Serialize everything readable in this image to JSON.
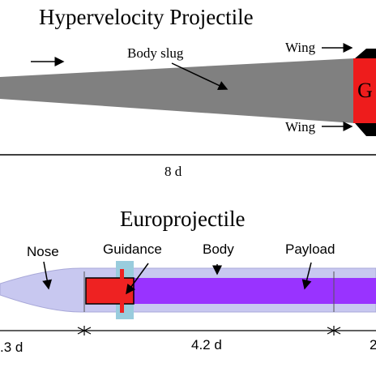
{
  "top": {
    "title": "Hypervelocity Projectile",
    "labels": {
      "body_slug": "Body slug",
      "wing_top": "Wing",
      "wing_bottom": "Wing",
      "guidance_short": "G"
    },
    "dimension": "8 d",
    "colors": {
      "body": "#808080",
      "guidance": "#ee1c1c",
      "wing": "#000000"
    }
  },
  "bottom": {
    "title": "Europrojectile",
    "labels": {
      "nose": "Nose",
      "guidance": "Guidance",
      "body": "Body",
      "payload": "Payload"
    },
    "dimensions": {
      "left": ".3 d",
      "middle": "4.2 d",
      "right": "2"
    },
    "colors": {
      "outer": "#c8c8f0",
      "body": "#9933ff",
      "guidance": "#ee2222",
      "guidance_ring": "#99ccdd"
    }
  }
}
